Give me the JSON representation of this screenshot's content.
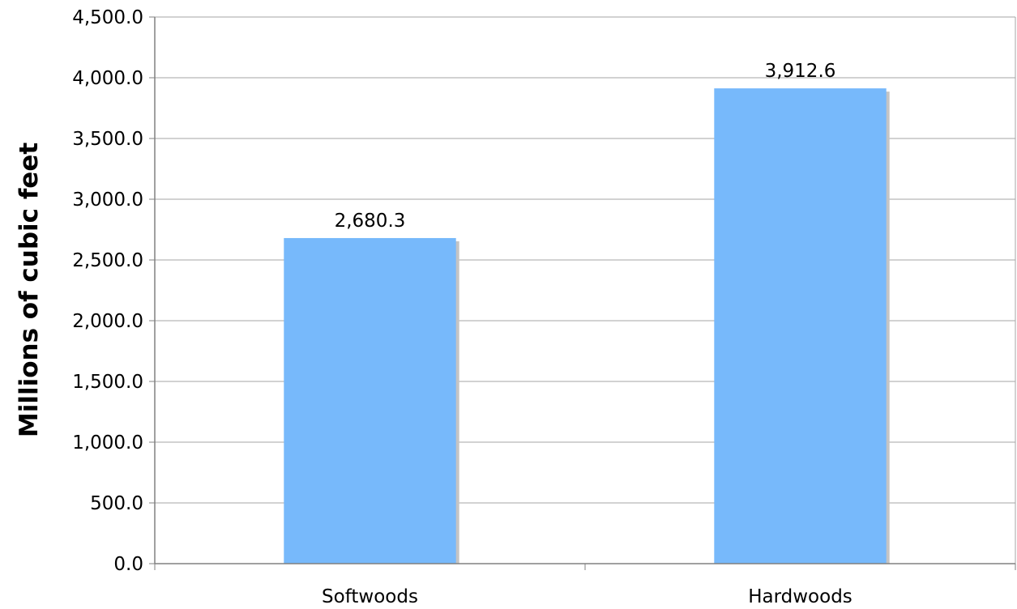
{
  "chart_data": {
    "type": "bar",
    "title": "",
    "xlabel": "",
    "ylabel": "Millions of cubic feet",
    "categories": [
      "Softwoods",
      "Hardwoods"
    ],
    "values": [
      2680.3,
      3912.6
    ],
    "data_labels": [
      "2,680.3",
      "3,912.6"
    ],
    "ylim": [
      0,
      4500
    ],
    "yticks": [
      0,
      500,
      1000,
      1500,
      2000,
      2500,
      3000,
      3500,
      4000,
      4500
    ],
    "ytick_labels": [
      "0.0",
      "500.0",
      "1,000.0",
      "1,500.0",
      "2,000.0",
      "2,500.0",
      "3,000.0",
      "3,500.0",
      "4,000.0",
      "4,500.0"
    ],
    "grid": true,
    "legend": "none",
    "colors": {
      "bar": "#77b9fb",
      "bar_shadow": "#c4c4c4",
      "grid": "#a6a6a6",
      "axis": "#808080"
    }
  }
}
